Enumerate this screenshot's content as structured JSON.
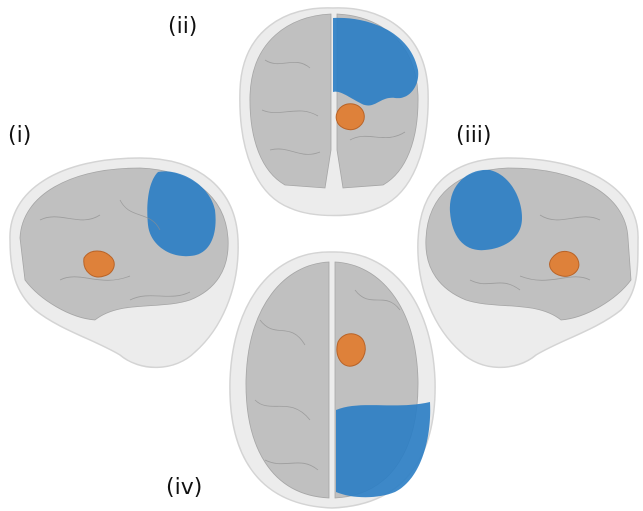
{
  "panels": [
    {
      "label": "(i)"
    },
    {
      "label": "(ii)"
    },
    {
      "label": "(iii)"
    },
    {
      "label": "(iv)"
    }
  ]
}
